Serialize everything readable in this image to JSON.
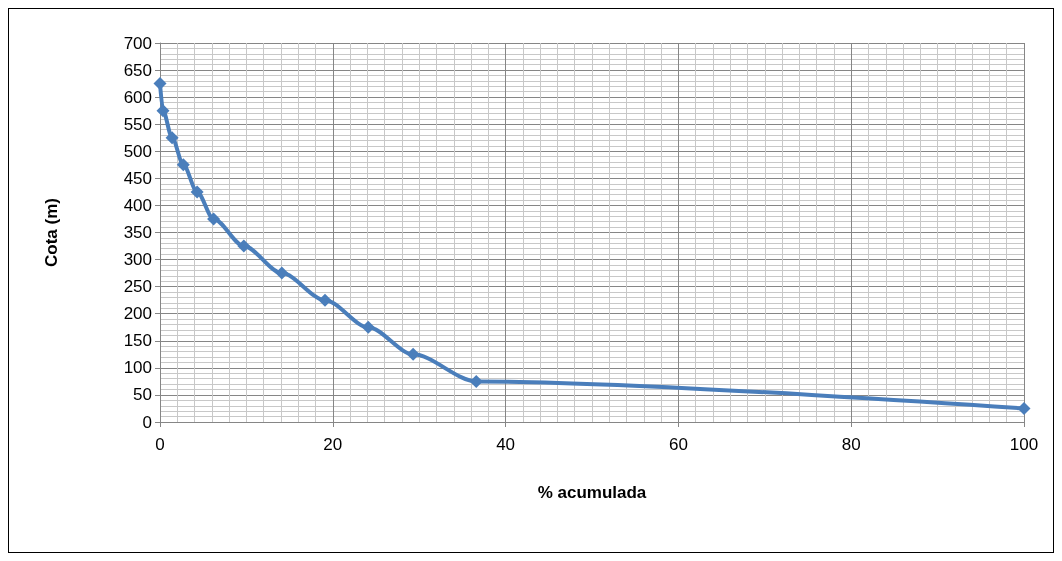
{
  "chart_data": {
    "type": "line",
    "xlabel": "% acumulada",
    "ylabel": "Cota (m)",
    "x": [
      0,
      0.35,
      1.4,
      2.7,
      4.3,
      6.2,
      9.7,
      14.1,
      19.1,
      24.1,
      29.3,
      36.6,
      100
    ],
    "series": [
      {
        "color": "#4a7ebb",
        "values": [
          625,
          575,
          525,
          475,
          425,
          375,
          325,
          275,
          225,
          175,
          125,
          75,
          25
        ]
      }
    ],
    "xlim": [
      0,
      100
    ],
    "xticks": [
      0,
      20,
      40,
      60,
      80,
      100
    ],
    "ylim": [
      0,
      700
    ],
    "yticks": [
      0,
      50,
      100,
      150,
      200,
      250,
      300,
      350,
      400,
      450,
      500,
      550,
      600,
      650,
      700
    ],
    "grid": true,
    "marker": "diamond",
    "line_style": "solid"
  }
}
